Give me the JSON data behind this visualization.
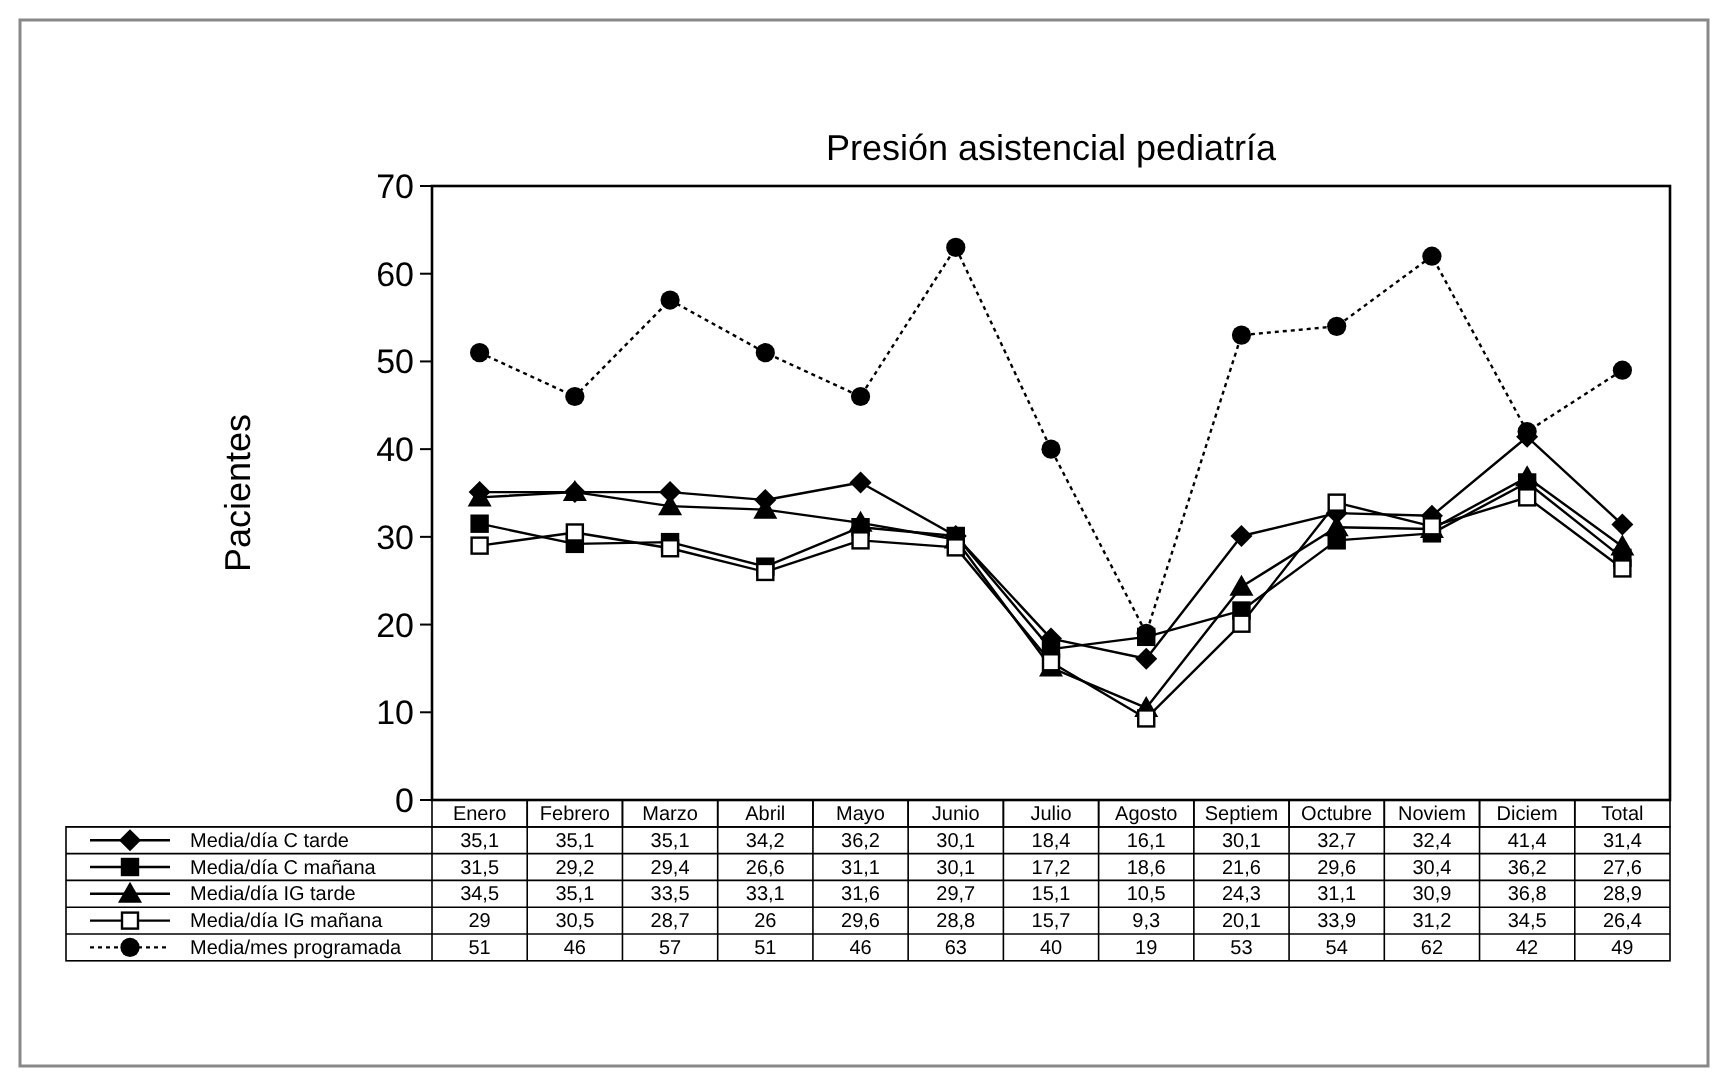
{
  "chart_data": {
    "type": "line",
    "title": "Presión asistencial pediatría",
    "ylabel": "Pacientes",
    "categories": [
      "Enero",
      "Febrero",
      "Marzo",
      "Abril",
      "Mayo",
      "Junio",
      "Julio",
      "Agosto",
      "Septiem",
      "Octubre",
      "Noviem",
      "Diciem",
      "Total"
    ],
    "ylim": [
      0,
      70
    ],
    "yticks": [
      0,
      10,
      20,
      30,
      40,
      50,
      60,
      70
    ],
    "grid": false,
    "legend": "bottom",
    "series": [
      {
        "name": "Media/día C tarde",
        "color": "#000000",
        "marker": "diamond",
        "line_style": "solid",
        "values": [
          35.1,
          35.1,
          35.1,
          34.2,
          36.2,
          30.1,
          18.4,
          16.1,
          30.1,
          32.7,
          32.4,
          41.4,
          31.4
        ],
        "value_labels": [
          "35,1",
          "35,1",
          "35,1",
          "34,2",
          "36,2",
          "30,1",
          "18,4",
          "16,1",
          "30,1",
          "32,7",
          "32,4",
          "41,4",
          "31,4"
        ]
      },
      {
        "name": "Media/día C mañana",
        "color": "#000000",
        "marker": "square",
        "line_style": "solid",
        "values": [
          31.5,
          29.2,
          29.4,
          26.6,
          31.1,
          30.1,
          17.2,
          18.6,
          21.6,
          29.6,
          30.4,
          36.2,
          27.6
        ],
        "value_labels": [
          "31,5",
          "29,2",
          "29,4",
          "26,6",
          "31,1",
          "30,1",
          "17,2",
          "18,6",
          "21,6",
          "29,6",
          "30,4",
          "36,2",
          "27,6"
        ]
      },
      {
        "name": "Media/día IG tarde",
        "color": "#000000",
        "marker": "triangle",
        "line_style": "solid",
        "values": [
          34.5,
          35.1,
          33.5,
          33.1,
          31.6,
          29.7,
          15.1,
          10.5,
          24.3,
          31.1,
          30.9,
          36.8,
          28.9
        ],
        "value_labels": [
          "34,5",
          "35,1",
          "33,5",
          "33,1",
          "31,6",
          "29,7",
          "15,1",
          "10,5",
          "24,3",
          "31,1",
          "30,9",
          "36,8",
          "28,9"
        ]
      },
      {
        "name": "Media/día IG mañana",
        "color": "#ffffff",
        "marker": "square",
        "line_style": "solid",
        "values": [
          29,
          30.5,
          28.7,
          26,
          29.6,
          28.8,
          15.7,
          9.3,
          20.1,
          33.9,
          31.2,
          34.5,
          26.4
        ],
        "value_labels": [
          "29",
          "30,5",
          "28,7",
          "26",
          "29,6",
          "28,8",
          "15,7",
          "9,3",
          "20,1",
          "33,9",
          "31,2",
          "34,5",
          "26,4"
        ]
      },
      {
        "name": "Media/mes programada",
        "color": "#000000",
        "marker": "circle",
        "line_style": "dotted",
        "values": [
          51,
          46,
          57,
          51,
          46,
          63,
          40,
          19,
          53,
          54,
          62,
          42,
          49
        ],
        "value_labels": [
          "51",
          "46",
          "57",
          "51",
          "46",
          "63",
          "40",
          "19",
          "53",
          "54",
          "62",
          "42",
          "49"
        ]
      }
    ]
  }
}
